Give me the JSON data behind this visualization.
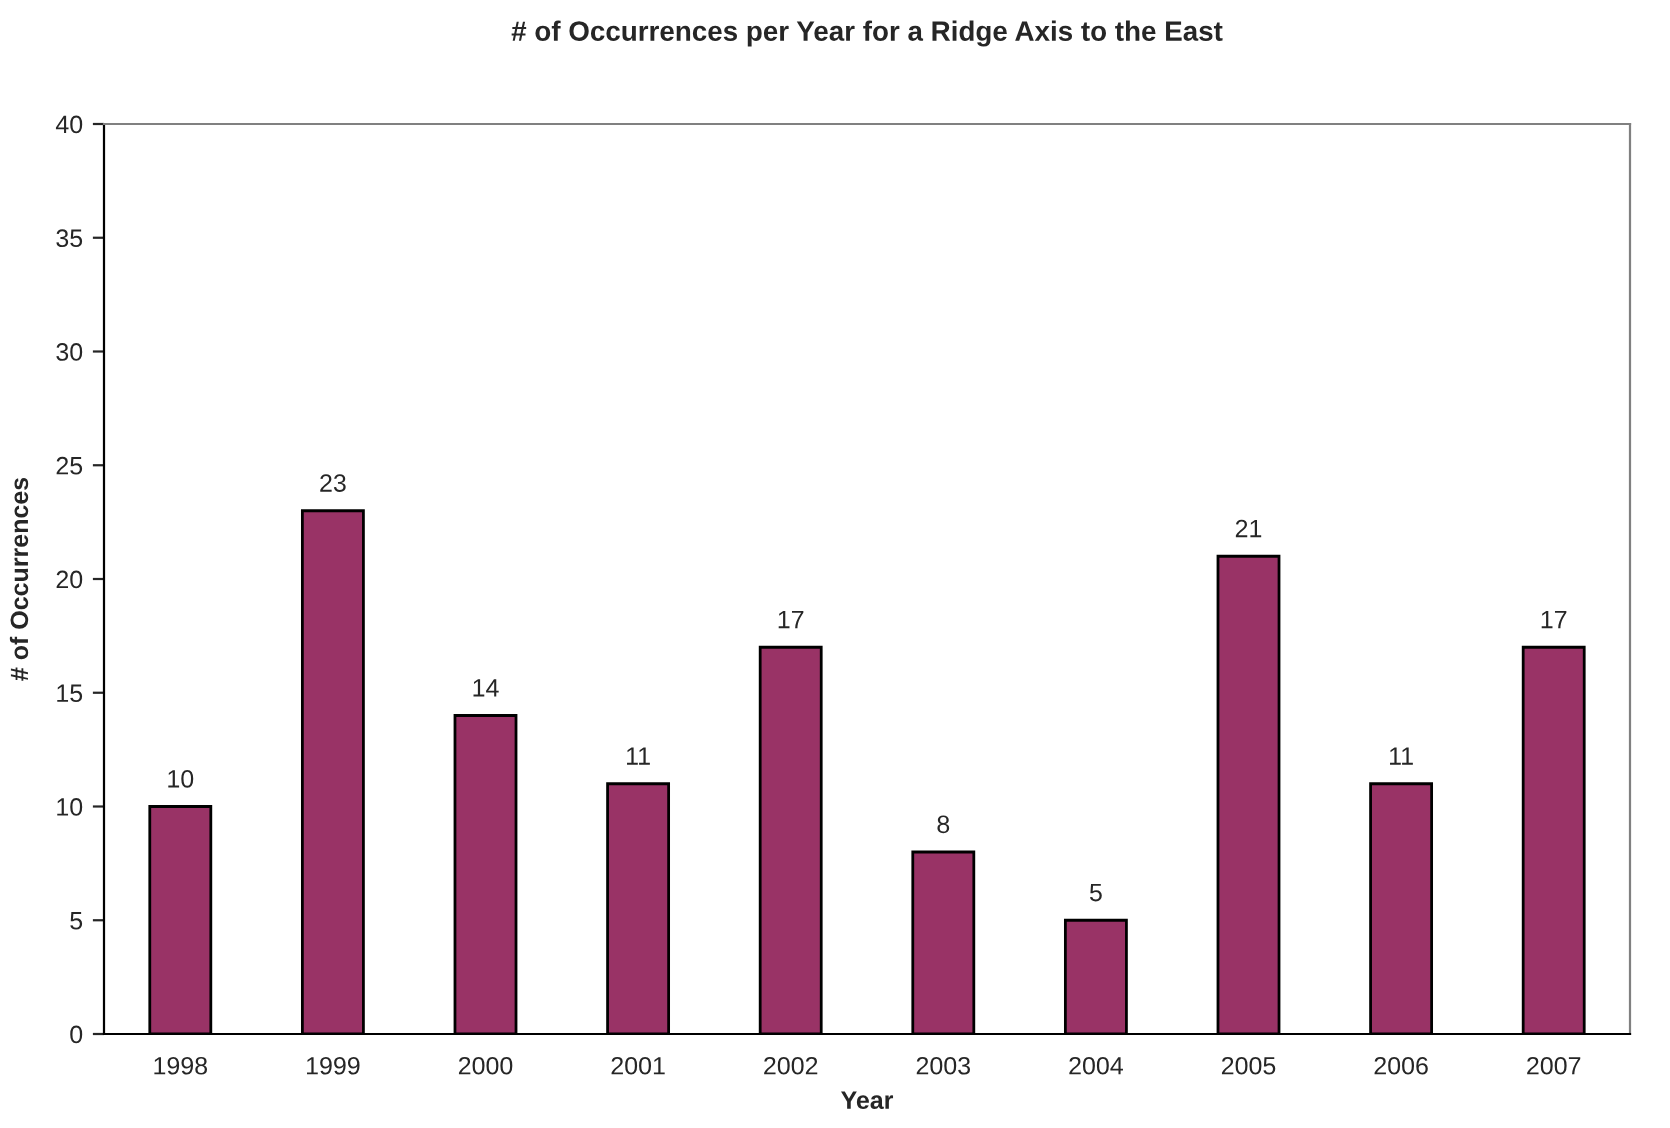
{
  "chart_data": {
    "type": "bar",
    "title": "# of Occurrences per Year for a Ridge Axis to the East",
    "xlabel": "Year",
    "ylabel": "# of Occurrences",
    "categories": [
      "1998",
      "1999",
      "2000",
      "2001",
      "2002",
      "2003",
      "2004",
      "2005",
      "2006",
      "2007"
    ],
    "values": [
      10,
      23,
      14,
      11,
      17,
      8,
      5,
      21,
      11,
      17
    ],
    "color": "#993366",
    "ylim": [
      0,
      40
    ],
    "yticks": [
      0,
      5,
      10,
      15,
      20,
      25,
      30,
      35,
      40
    ],
    "grid": false,
    "data_labels": true
  }
}
